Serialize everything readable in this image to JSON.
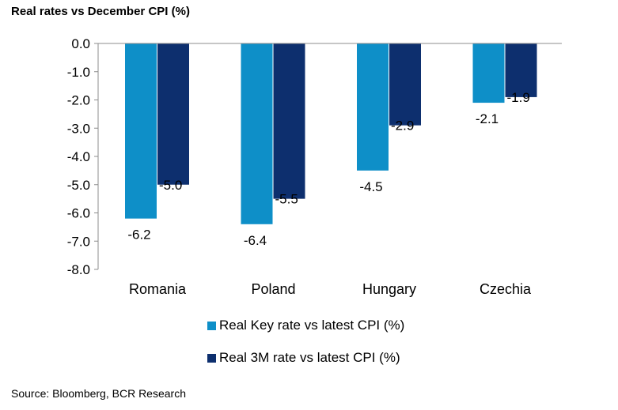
{
  "title": "Real rates vs December CPI (%)",
  "source": "Source: Bloomberg, BCR Research",
  "chart_data": {
    "type": "bar",
    "categories": [
      "Romania",
      "Poland",
      "Hungary",
      "Czechia"
    ],
    "series": [
      {
        "name": "Real Key rate vs latest CPI (%)",
        "values": [
          -6.2,
          -6.4,
          -4.5,
          -2.1
        ],
        "color": "#0E8FC8"
      },
      {
        "name": "Real 3M rate vs latest CPI (%)",
        "values": [
          -5.0,
          -5.5,
          -2.9,
          -1.9
        ],
        "color": "#0D2F6E"
      }
    ],
    "data_labels": [
      [
        "-6.2",
        "-6.4",
        "-4.5",
        "-2.1"
      ],
      [
        "-5.0",
        "-5.5",
        "-2.9",
        "-1.9"
      ]
    ],
    "y_ticks": [
      "0.0",
      "-1.0",
      "-2.0",
      "-3.0",
      "-4.0",
      "-5.0",
      "-6.0",
      "-7.0",
      "-8.0"
    ],
    "ylim": [
      -8,
      0
    ],
    "legend_position": "bottom",
    "grid": false
  }
}
